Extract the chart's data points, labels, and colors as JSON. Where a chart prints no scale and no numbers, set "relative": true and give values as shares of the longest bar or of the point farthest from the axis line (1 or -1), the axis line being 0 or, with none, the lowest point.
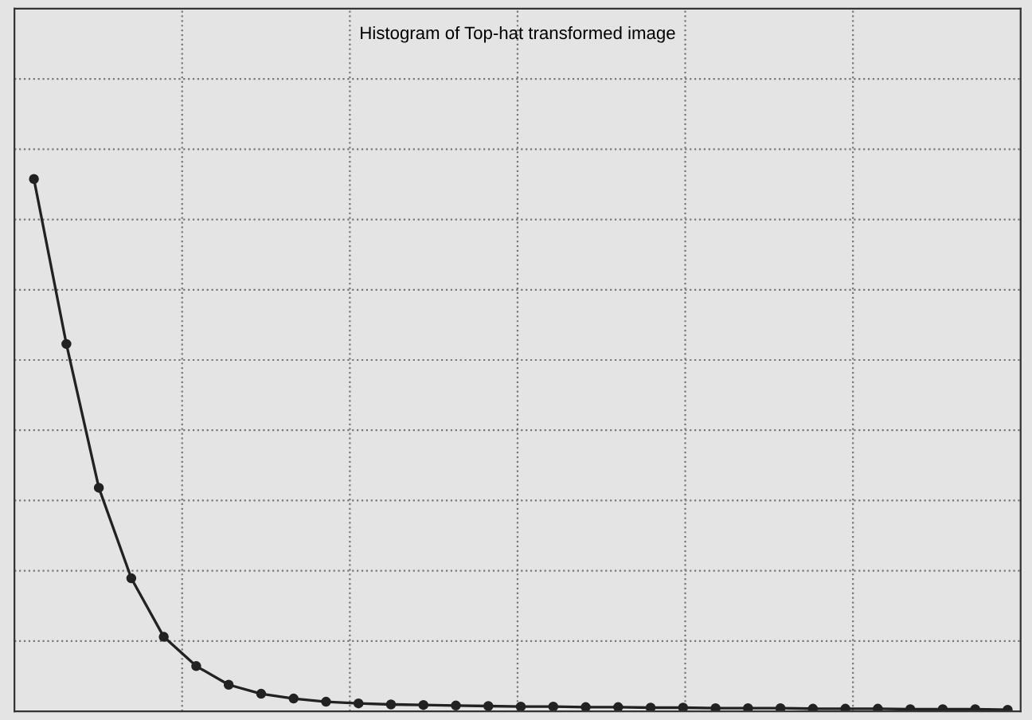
{
  "chart_data": {
    "type": "line",
    "title": "Histogram of Top-hat transformed image",
    "relative": true,
    "categories": [
      null,
      null,
      null,
      null,
      null,
      null,
      null,
      null,
      null,
      null,
      null,
      null,
      null,
      null,
      null,
      null,
      null,
      null,
      null,
      null,
      null,
      null,
      null,
      null,
      null,
      null,
      null,
      null,
      null,
      null,
      null
    ],
    "series": [
      {
        "color": "#222222",
        "values": [
          1,
          0.69,
          0.42,
          0.25,
          0.14,
          0.085,
          0.05,
          0.033,
          0.024,
          0.018,
          0.015,
          0.013,
          0.012,
          0.011,
          0.01,
          0.009,
          0.009,
          0.008,
          0.008,
          0.007,
          0.007,
          0.006,
          0.006,
          0.006,
          0.005,
          0.005,
          0.005,
          0.004,
          0.004,
          0.004,
          0.003
        ]
      }
    ],
    "grid": true,
    "marker": "circle",
    "line_style": "solid",
    "legend": false
  }
}
